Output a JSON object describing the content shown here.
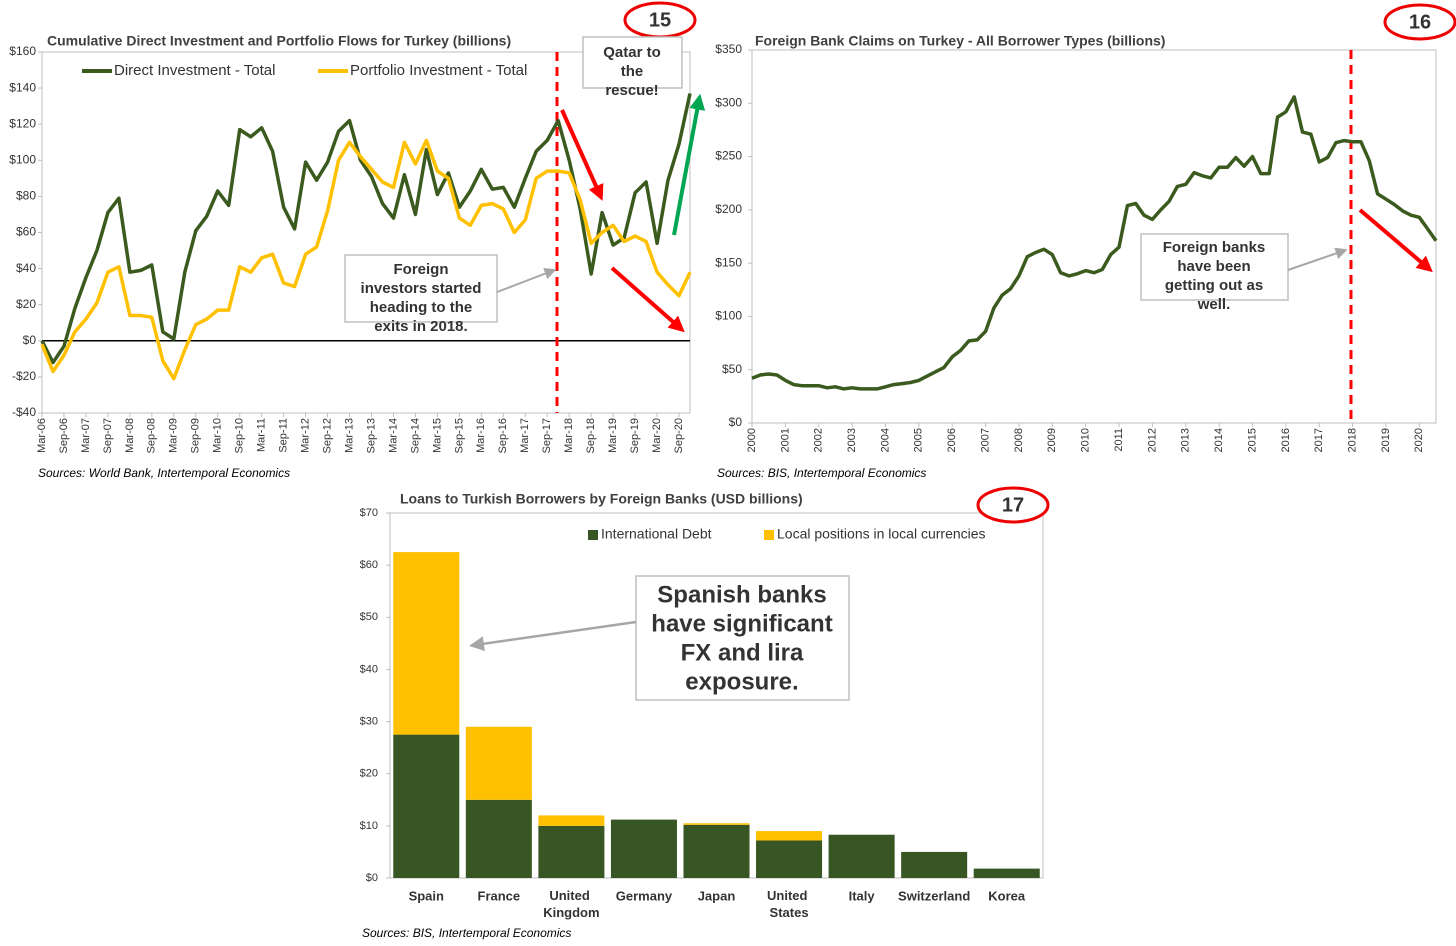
{
  "chart_data": [
    {
      "type": "line",
      "title": "Cumulative Direct Investment and Portfolio Flows for Turkey (billions)",
      "badge": "15",
      "source": "Sources: World Bank, Intertemporal Economics",
      "annotations": [
        [
          "Qatar to",
          "the",
          "rescue!"
        ],
        [
          "Foreign",
          "investors started",
          "heading to the",
          "exits in 2018."
        ]
      ],
      "legend": "top",
      "categories": [
        "Mar-06",
        null,
        "Sep-06",
        null,
        "Mar-07",
        null,
        "Sep-07",
        null,
        "Mar-08",
        null,
        "Sep-08",
        null,
        "Mar-09",
        null,
        "Sep-09",
        null,
        "Mar-10",
        null,
        "Sep-10",
        null,
        "Mar-11",
        null,
        "Sep-11",
        null,
        "Mar-12",
        null,
        "Sep-12",
        null,
        "Mar-13",
        null,
        "Sep-13",
        null,
        "Mar-14",
        null,
        "Sep-14",
        null,
        "Mar-15",
        null,
        "Sep-15",
        null,
        "Mar-16",
        null,
        "Sep-16",
        null,
        "Mar-17",
        null,
        "Sep-17",
        null,
        "Mar-18",
        null,
        "Sep-18",
        null,
        "Mar-19",
        null,
        "Sep-19",
        null,
        "Mar-20",
        null,
        "Sep-20",
        null
      ],
      "series": [
        {
          "name": "Direct Investment - Total",
          "color": "#3b5a1e",
          "values": [
            0,
            -12,
            -3,
            18,
            35,
            50,
            71,
            79,
            38,
            39,
            42,
            5,
            1,
            38,
            61,
            69,
            83,
            75,
            117,
            113,
            118,
            105,
            74,
            62,
            99,
            89,
            99,
            116,
            122,
            100,
            91,
            76,
            68,
            92,
            70,
            106,
            81,
            93,
            74,
            83,
            95,
            84,
            85,
            74,
            90,
            105,
            111,
            122,
            100,
            73,
            37,
            71,
            53,
            57,
            82,
            88,
            54,
            89,
            109,
            137
          ]
        },
        {
          "name": "Portfolio Investment - Total",
          "color": "#ffc000",
          "values": [
            -2,
            -17,
            -8,
            5,
            12,
            21,
            38,
            41,
            14,
            14,
            13,
            -11,
            -21,
            -5,
            9,
            12,
            17,
            17,
            41,
            38,
            46,
            48,
            32,
            30,
            48,
            52,
            72,
            100,
            110,
            102,
            95,
            88,
            85,
            110,
            98,
            111,
            94,
            90,
            68,
            64,
            75,
            76,
            73,
            60,
            67,
            90,
            94,
            94,
            93,
            78,
            54,
            60,
            64,
            55,
            58,
            55,
            38,
            31,
            25,
            38
          ]
        }
      ],
      "ylim": [
        -40,
        160
      ],
      "yticks": [
        {
          "value": 160,
          "label": "$160"
        },
        {
          "value": 140,
          "label": "$140"
        },
        {
          "value": 120,
          "label": "$120"
        },
        {
          "value": 100,
          "label": "$100"
        },
        {
          "value": 80,
          "label": "$80"
        },
        {
          "value": 60,
          "label": "$60"
        },
        {
          "value": 40,
          "label": "$40"
        },
        {
          "value": 20,
          "label": "$20"
        },
        {
          "value": 0,
          "label": "$0"
        },
        {
          "value": -20,
          "label": "-$20"
        },
        {
          "value": -40,
          "label": "-$40"
        }
      ]
    },
    {
      "type": "line",
      "title": "Foreign Bank Claims on Turkey - All Borrower Types (billions)",
      "badge": "16",
      "source": "Sources: BIS, Intertemporal Economics",
      "annotations": [
        [
          "Foreign banks",
          "have been",
          "getting out as",
          "well."
        ]
      ],
      "categories": [
        "2000",
        null,
        null,
        null,
        "2001",
        null,
        null,
        null,
        "2002",
        null,
        null,
        null,
        "2003",
        null,
        null,
        null,
        "2004",
        null,
        null,
        null,
        "2005",
        null,
        null,
        null,
        "2006",
        null,
        null,
        null,
        "2007",
        null,
        null,
        null,
        "2008",
        null,
        null,
        null,
        "2009",
        null,
        null,
        null,
        "2010",
        null,
        null,
        null,
        "2011",
        null,
        null,
        null,
        "2012",
        null,
        null,
        null,
        "2013",
        null,
        null,
        null,
        "2014",
        null,
        null,
        null,
        "2015",
        null,
        null,
        null,
        "2016",
        null,
        null,
        null,
        "2017",
        null,
        null,
        null,
        "2018",
        null,
        null,
        null,
        "2019",
        null,
        null,
        null,
        "2020",
        null,
        null
      ],
      "series": [
        {
          "name": "Foreign Bank Claims",
          "color": "#3b5a1e",
          "values": [
            42,
            45,
            46,
            45,
            40,
            36,
            35,
            35,
            35,
            33,
            34,
            32,
            33,
            32,
            32,
            32,
            34,
            36,
            37,
            38,
            40,
            44,
            48,
            52,
            62,
            68,
            77,
            78,
            86,
            108,
            120,
            126,
            138,
            156,
            160,
            163,
            158,
            141,
            138,
            140,
            143,
            141,
            144,
            158,
            165,
            204,
            206,
            195,
            191,
            200,
            208,
            222,
            224,
            235,
            232,
            230,
            240,
            240,
            249,
            241,
            250,
            234,
            234,
            287,
            292,
            306,
            273,
            271,
            245,
            249,
            263,
            265,
            264,
            264,
            246,
            215,
            210,
            205,
            199,
            195,
            193,
            182,
            171
          ]
        }
      ],
      "ylim": [
        0,
        350
      ],
      "yticks": [
        {
          "value": 350,
          "label": "$350"
        },
        {
          "value": 300,
          "label": "$300"
        },
        {
          "value": 250,
          "label": "$250"
        },
        {
          "value": 200,
          "label": "$200"
        },
        {
          "value": 150,
          "label": "$150"
        },
        {
          "value": 100,
          "label": "$100"
        },
        {
          "value": 50,
          "label": "$50"
        },
        {
          "value": 0,
          "label": "$0"
        }
      ]
    },
    {
      "type": "bar",
      "stacked": true,
      "title": "Loans to Turkish Borrowers by Foreign Banks (USD billions)",
      "badge": "17",
      "source": "Sources: BIS, Intertemporal Economics",
      "annotations": [
        [
          "Spanish banks",
          "have significant",
          "FX and lira",
          "exposure."
        ]
      ],
      "legend": "top",
      "categories": [
        "Spain",
        "France",
        "United Kingdom",
        "Germany",
        "Japan",
        "United States",
        "Italy",
        "Switzerland",
        "Korea"
      ],
      "series": [
        {
          "name": "International Debt",
          "color": "#375623",
          "values": [
            27.5,
            15,
            10,
            11.2,
            10.2,
            7.2,
            8.3,
            5,
            1.8
          ]
        },
        {
          "name": "Local positions in local currencies",
          "color": "#ffc000",
          "values": [
            35,
            14,
            2,
            0,
            0.3,
            1.8,
            0,
            0,
            0
          ]
        }
      ],
      "ylim": [
        0,
        70
      ],
      "yticks": [
        {
          "value": 70,
          "label": "$70"
        },
        {
          "value": 60,
          "label": "$60"
        },
        {
          "value": 50,
          "label": "$50"
        },
        {
          "value": 40,
          "label": "$40"
        },
        {
          "value": 30,
          "label": "$30"
        },
        {
          "value": 20,
          "label": "$20"
        },
        {
          "value": 10,
          "label": "$10"
        },
        {
          "value": 0,
          "label": "$0"
        }
      ]
    }
  ]
}
